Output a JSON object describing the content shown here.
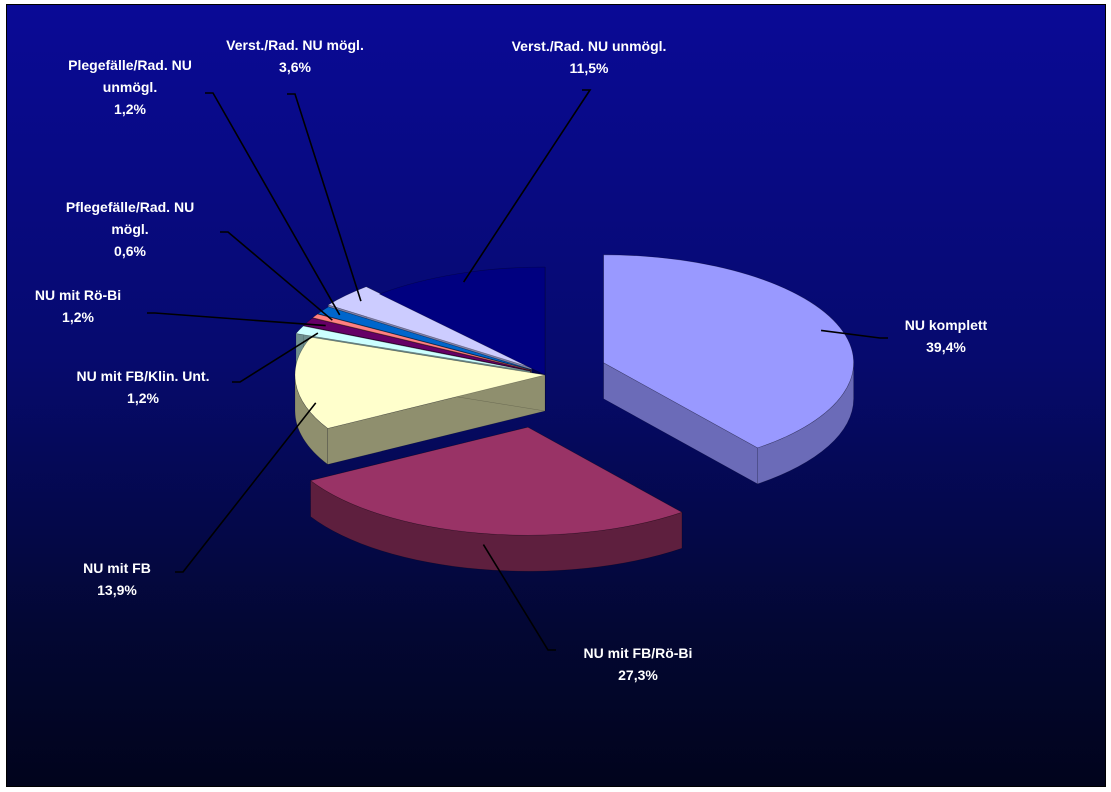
{
  "chart_data": {
    "type": "pie",
    "title": "",
    "style": "3d-exploded",
    "slices": [
      {
        "name": "NU komplett",
        "value": 39.4,
        "label_lines": [
          "NU komplett"
        ],
        "value_label": "39,4%",
        "color": "#9999ff",
        "side": "#6b6bb8"
      },
      {
        "name": "NU mit  FB/Rö-Bi",
        "value": 27.3,
        "label_lines": [
          "NU mit  FB/Rö-Bi"
        ],
        "value_label": "27,3%",
        "color": "#993366",
        "side": "#5e1f3e"
      },
      {
        "name": "NU mit FB",
        "value": 13.9,
        "label_lines": [
          "NU mit FB"
        ],
        "value_label": "13,9%",
        "color": "#ffffcc",
        "side": "#8f8f6e"
      },
      {
        "name": "NU mit FB/Klin. Unt.",
        "value": 1.2,
        "label_lines": [
          "NU mit FB/Klin. Unt."
        ],
        "value_label": "1,2%",
        "color": "#ccffff",
        "side": "#6f8f8f"
      },
      {
        "name": "NU mit Rö-Bi",
        "value": 1.2,
        "label_lines": [
          "NU mit Rö-Bi"
        ],
        "value_label": "1,2%",
        "color": "#660066",
        "side": "#3a003a"
      },
      {
        "name": "Pflegefälle/Rad. NU mögl.",
        "value": 0.6,
        "label_lines": [
          "Pflegefälle/Rad. NU",
          "mögl."
        ],
        "value_label": "0,6%",
        "color": "#ff8080",
        "side": "#a04848"
      },
      {
        "name": "Plegefälle/Rad. NU unmögl.",
        "value": 1.2,
        "label_lines": [
          "Plegefälle/Rad. NU",
          "unmögl."
        ],
        "value_label": "1,2%",
        "color": "#0066cc",
        "side": "#003f80"
      },
      {
        "name": "Verst./Rad. NU mögl.",
        "value": 3.6,
        "label_lines": [
          "Verst./Rad. NU mögl."
        ],
        "value_label": "3,6%",
        "color": "#ccccff",
        "side": "#7f7fa8"
      },
      {
        "name": "Verst./Rad. NU unmögl.",
        "value": 11.5,
        "label_lines": [
          "Verst./Rad. NU unmögl."
        ],
        "value_label": "11,5%",
        "color": "#000080",
        "side": "#00004d"
      }
    ],
    "legend": "none"
  }
}
